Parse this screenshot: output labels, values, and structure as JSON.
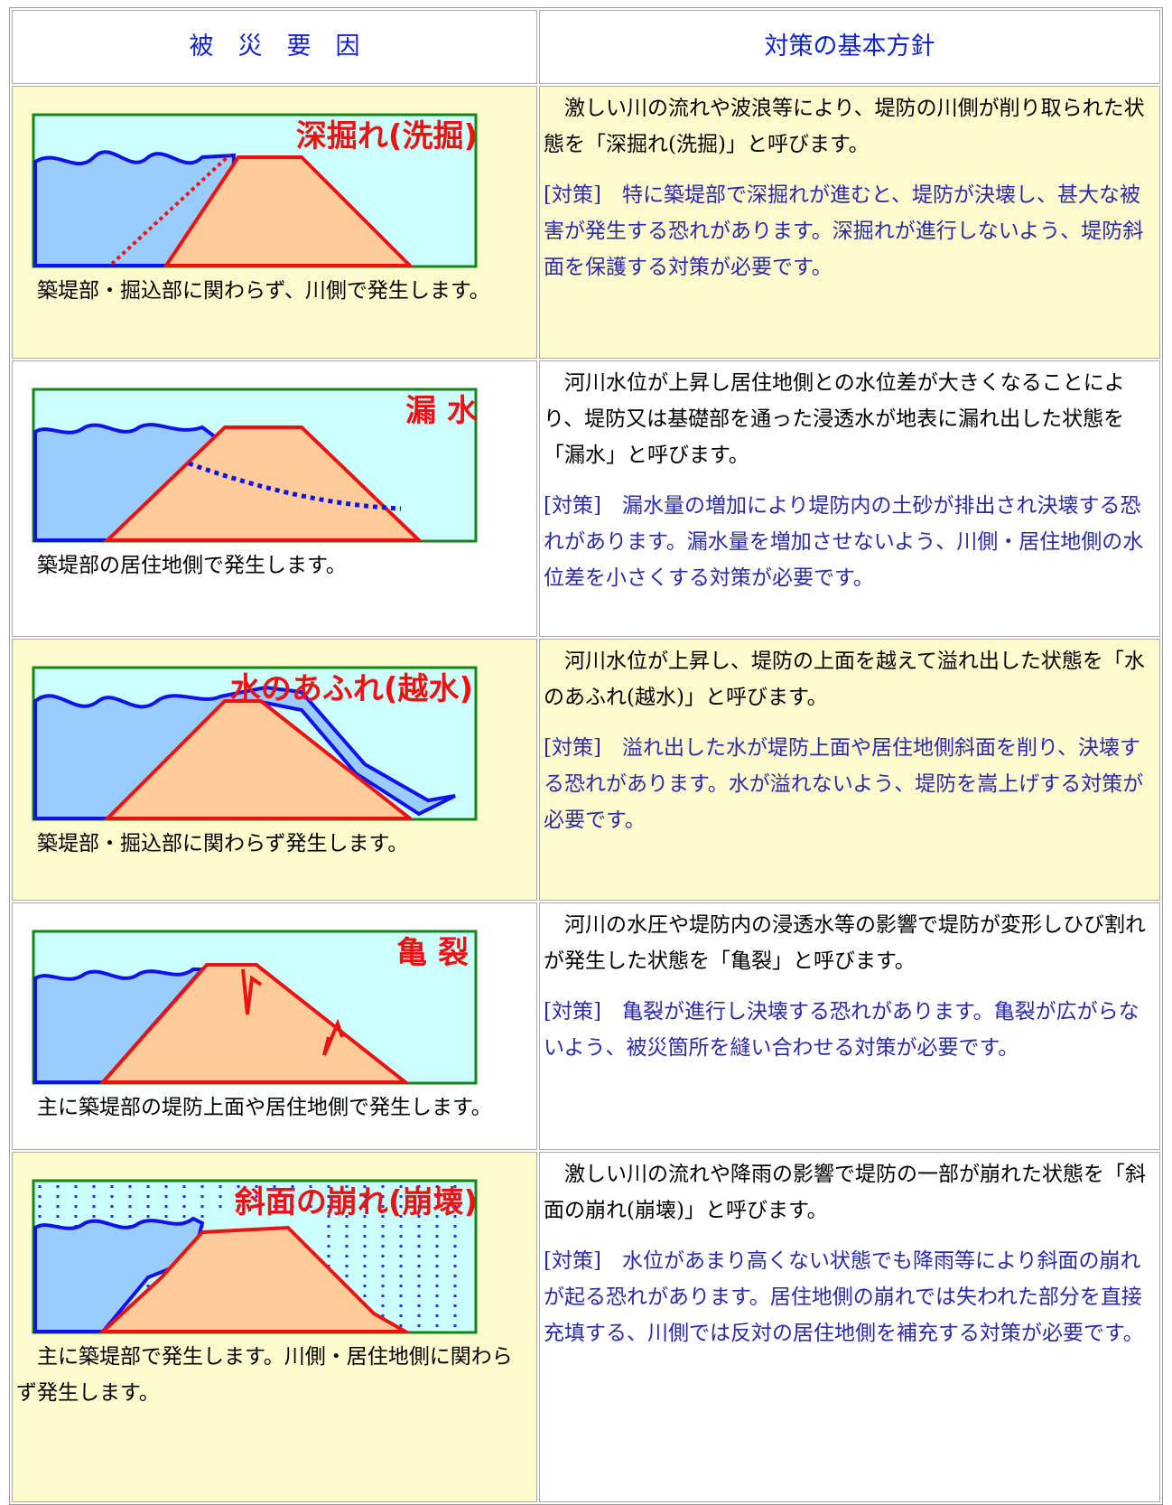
{
  "header": {
    "cause": "被　災　要　因",
    "policy": "対策の基本方針"
  },
  "rows": [
    {
      "image_label": "深掘れ(洗掘)",
      "caption": "築堤部・掘込部に関わらず、川側で発生します。",
      "description": "激しい川の流れや波浪等により、堤防の川側が削り取られた状態を「深掘れ(洗掘)」と呼びます。",
      "measure": "[対策]　特に築堤部で深掘れが進むと、堤防が決壊し、甚大な被害が発生する恐れがあります。深掘れが進行しないよう、堤防斜面を保護する対策が必要です。"
    },
    {
      "image_label": "漏 水",
      "caption": "築堤部の居住地側で発生します。",
      "description": "河川水位が上昇し居住地側との水位差が大きくなることにより、堤防又は基礎部を通った浸透水が地表に漏れ出した状態を「漏水」と呼びます。",
      "measure": "[対策]　漏水量の増加により堤防内の土砂が排出され決壊する恐れがあります。漏水量を増加させないよう、川側・居住地側の水位差を小さくする対策が必要です。"
    },
    {
      "image_label": "水のあふれ(越水)",
      "caption": "築堤部・掘込部に関わらず発生します。",
      "description": "河川水位が上昇し、堤防の上面を越えて溢れ出した状態を「水のあふれ(越水)」と呼びます。",
      "measure": "[対策]　溢れ出した水が堤防上面や居住地側斜面を削り、決壊する恐れがあります。水が溢れないよう、堤防を嵩上げする対策が必要です。"
    },
    {
      "image_label": "亀 裂",
      "caption": "主に築堤部の堤防上面や居住地側で発生します。",
      "description": "河川の水圧や堤防内の浸透水等の影響で堤防が変形しひび割れが発生した状態を「亀裂」と呼びます。",
      "measure": "[対策]　亀裂が進行し決壊する恐れがあります。亀裂が広がらないよう、被災箇所を縫い合わせる対策が必要です。"
    },
    {
      "image_label": "斜面の崩れ(崩壊)",
      "caption": "主に築堤部で発生します。川側・居住地側に関わらず発生します。",
      "description": "激しい川の流れや降雨の影響で堤防の一部が崩れた状態を「斜面の崩れ(崩壊)」と呼びます。",
      "measure": "[対策]　水位があまり高くない状態でも降雨等により斜面の崩れが起る恐れがあります。居住地側の崩れでは失われた部分を直接充填する、川側では反対の居住地側を補充する対策が必要です。"
    }
  ]
}
